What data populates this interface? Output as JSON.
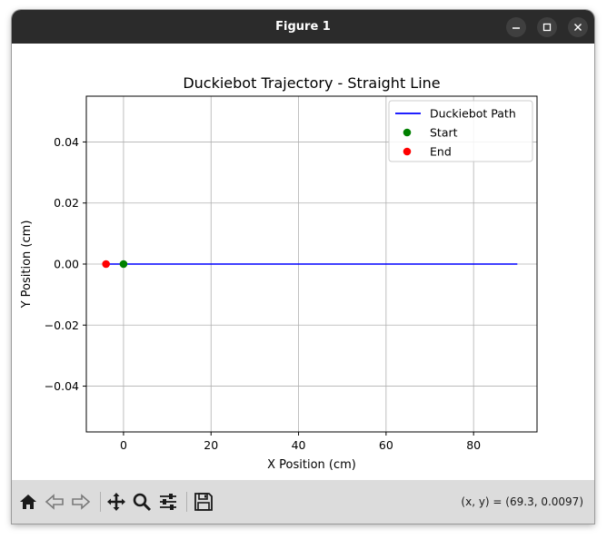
{
  "window": {
    "title": "Figure 1"
  },
  "toolbar": {
    "coords": "(x, y) = (69.3, 0.0097)"
  },
  "chart_data": {
    "type": "line",
    "title": "Duckiebot Trajectory - Straight Line",
    "xlabel": "X Position (cm)",
    "ylabel": "Y Position (cm)",
    "xlim": [
      -8.5,
      94.5
    ],
    "ylim": [
      -0.055,
      0.055
    ],
    "xticks": [
      0,
      20,
      40,
      60,
      80
    ],
    "yticks": [
      -0.04,
      -0.02,
      0.0,
      0.02,
      0.04
    ],
    "xtick_labels": [
      "0",
      "20",
      "40",
      "60",
      "80"
    ],
    "ytick_labels": [
      "−0.04",
      "−0.02",
      "0.00",
      "0.02",
      "0.04"
    ],
    "grid": true,
    "legend_position": "top-right",
    "series": [
      {
        "name": "Duckiebot Path",
        "kind": "line",
        "color": "#0000ff",
        "x": [
          -4,
          90
        ],
        "y": [
          0,
          0
        ]
      },
      {
        "name": "Start",
        "kind": "point",
        "color": "#008000",
        "x": [
          0
        ],
        "y": [
          0
        ]
      },
      {
        "name": "End",
        "kind": "point",
        "color": "#ff0000",
        "x": [
          -4
        ],
        "y": [
          0
        ]
      }
    ]
  },
  "colors": {
    "titlebar": "#2b2b2b",
    "toolbar": "#dcdcdc"
  }
}
